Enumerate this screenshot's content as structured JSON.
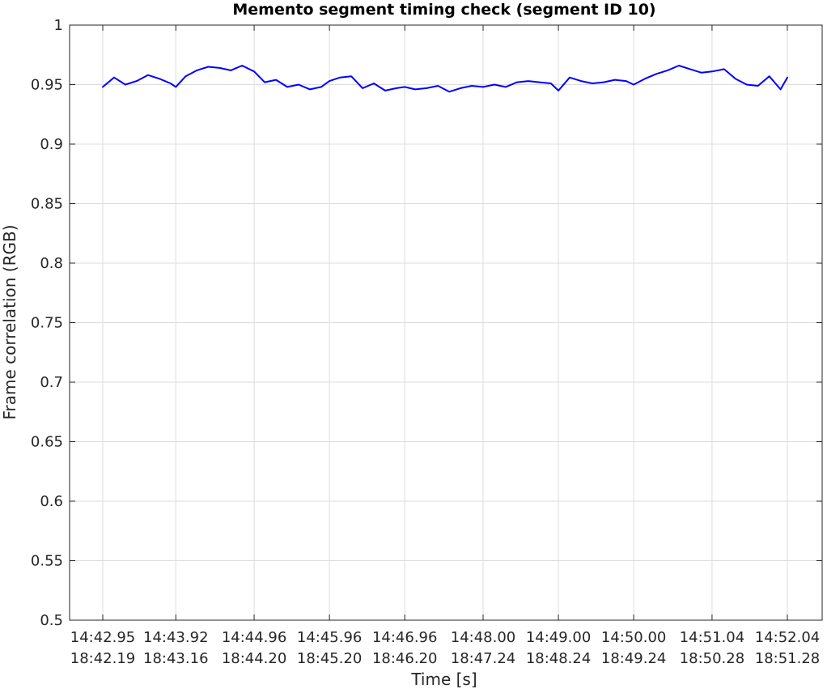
{
  "chart_data": {
    "type": "line",
    "title": "Memento segment timing check (segment ID 10)",
    "xlabel": "Time [s]",
    "ylabel": "Frame correlation (RGB)",
    "ylim": [
      0.5,
      1.0
    ],
    "yticks": [
      "0.5",
      "0.55",
      "0.6",
      "0.65",
      "0.7",
      "0.75",
      "0.8",
      "0.85",
      "0.9",
      "0.95",
      "1"
    ],
    "xticks": [
      {
        "line1": "14:42.95",
        "line2": "18:42.19"
      },
      {
        "line1": "14:43.92",
        "line2": "18:43.16"
      },
      {
        "line1": "14:44.96",
        "line2": "18:44.20"
      },
      {
        "line1": "14:45.96",
        "line2": "18:45.20"
      },
      {
        "line1": "14:46.96",
        "line2": "18:46.20"
      },
      {
        "line1": "14:48.00",
        "line2": "18:47.24"
      },
      {
        "line1": "14:49.00",
        "line2": "18:48.24"
      },
      {
        "line1": "14:50.00",
        "line2": "18:49.24"
      },
      {
        "line1": "14:51.04",
        "line2": "18:50.28"
      },
      {
        "line1": "14:52.04",
        "line2": "18:51.28"
      }
    ],
    "grid": true,
    "series": [
      {
        "color": "#0000ff",
        "x": [
          "14:42.95",
          "14:43.10",
          "14:43.25",
          "14:43.40",
          "14:43.55",
          "14:43.70",
          "14:43.85",
          "14:43.92",
          "14:44.05",
          "14:44.20",
          "14:44.35",
          "14:44.50",
          "14:44.65",
          "14:44.80",
          "14:44.96",
          "14:45.10",
          "14:45.25",
          "14:45.40",
          "14:45.55",
          "14:45.70",
          "14:45.85",
          "14:45.96",
          "14:46.10",
          "14:46.25",
          "14:46.40",
          "14:46.55",
          "14:46.70",
          "14:46.85",
          "14:46.96",
          "14:47.10",
          "14:47.25",
          "14:47.40",
          "14:47.55",
          "14:47.70",
          "14:47.85",
          "14:48.00",
          "14:48.15",
          "14:48.30",
          "14:48.45",
          "14:48.60",
          "14:48.75",
          "14:48.90",
          "14:49.00",
          "14:49.15",
          "14:49.30",
          "14:49.45",
          "14:49.60",
          "14:49.75",
          "14:49.90",
          "14:50.00",
          "14:50.15",
          "14:50.30",
          "14:50.45",
          "14:50.60",
          "14:50.75",
          "14:50.90",
          "14:51.04",
          "14:51.20",
          "14:51.35",
          "14:51.50",
          "14:51.65",
          "14:51.80",
          "14:51.95",
          "14:52.04"
        ],
        "y": [
          0.948,
          0.956,
          0.95,
          0.953,
          0.958,
          0.955,
          0.951,
          0.948,
          0.957,
          0.962,
          0.965,
          0.964,
          0.962,
          0.966,
          0.961,
          0.952,
          0.954,
          0.948,
          0.95,
          0.946,
          0.948,
          0.953,
          0.956,
          0.957,
          0.947,
          0.951,
          0.945,
          0.947,
          0.948,
          0.946,
          0.947,
          0.949,
          0.944,
          0.947,
          0.949,
          0.948,
          0.95,
          0.948,
          0.952,
          0.953,
          0.952,
          0.951,
          0.945,
          0.956,
          0.953,
          0.951,
          0.952,
          0.954,
          0.953,
          0.95,
          0.955,
          0.959,
          0.962,
          0.966,
          0.963,
          0.96,
          0.961,
          0.963,
          0.955,
          0.95,
          0.949,
          0.957,
          0.946,
          0.956
        ]
      }
    ]
  }
}
